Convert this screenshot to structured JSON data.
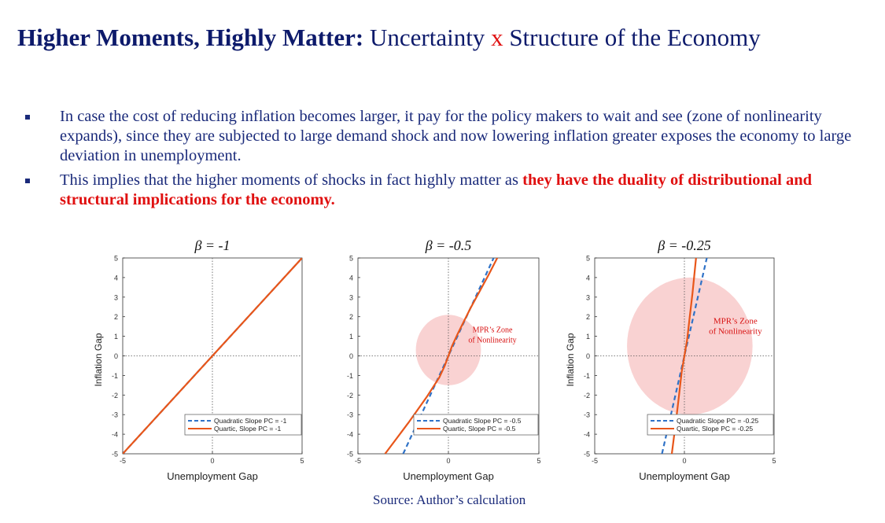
{
  "title": {
    "bold": "Higher Moments, Highly Matter:",
    "part1": "Uncertainty",
    "x": "x",
    "part2": "Structure of the Economy"
  },
  "bullets": [
    {
      "text": "In case the cost of reducing inflation becomes larger, it pay for the policy makers to wait and see (zone of nonlinearity expands), since they are subjected to large demand shock and now lowering inflation greater exposes the economy to large deviation in unemployment."
    },
    {
      "text": "This implies that the higher moments of shocks in fact highly matter as ",
      "highlight": "they have the duality of distributional and structural implications for the economy."
    }
  ],
  "chart_data": [
    {
      "type": "line",
      "title": "β = -1",
      "xlabel": "Unemployment Gap",
      "ylabel": "Inflation Gap",
      "xlim": [
        -5,
        5
      ],
      "ylim": [
        -5,
        5
      ],
      "xticks": [
        -5,
        0,
        5
      ],
      "yticks": [
        -5,
        -4,
        -3,
        -2,
        -1,
        0,
        1,
        2,
        3,
        4,
        5
      ],
      "series": [
        {
          "name": "Quadratic Slope PC = -1",
          "style": "dashed",
          "color": "#2f72c7",
          "x": [
            -5,
            5
          ],
          "y": [
            -5,
            5
          ]
        },
        {
          "name": "Quartic, Slope PC = -1",
          "style": "solid",
          "color": "#e8561a",
          "x": [
            -5,
            -2.5,
            0,
            2.5,
            5
          ],
          "y": [
            -5,
            -2.5,
            0,
            2.5,
            5
          ]
        }
      ],
      "legend": "bottom-right"
    },
    {
      "type": "line",
      "title": "β = -0.5",
      "xlabel": "Unemployment Gap",
      "ylabel": "",
      "xlim": [
        -5,
        5
      ],
      "ylim": [
        -5,
        5
      ],
      "xticks": [
        -5,
        0,
        5
      ],
      "yticks": [
        -5,
        -4,
        -3,
        -2,
        -1,
        0,
        1,
        2,
        3,
        4,
        5
      ],
      "series": [
        {
          "name": "Quadratic Slope PC = -0.5",
          "style": "dashed",
          "color": "#2f72c7",
          "x": [
            -2.5,
            2.5
          ],
          "y": [
            -5,
            5
          ]
        },
        {
          "name": "Quartic, Slope PC = -0.5",
          "style": "solid",
          "color": "#e8561a",
          "x": [
            -3.5,
            -2.2,
            -1.2,
            -0.5,
            -0.2,
            0,
            0.2,
            0.5,
            1.2,
            2.2,
            2.7
          ],
          "y": [
            -5,
            -3.4,
            -2.1,
            -1.1,
            -0.5,
            0,
            0.5,
            1.1,
            2.4,
            4.1,
            5
          ]
        }
      ],
      "annotation": {
        "text": [
          "MPR’s Zone",
          "of Nonlinearity"
        ],
        "center": [
          0,
          0.3
        ],
        "radius": 1.8
      },
      "legend": "bottom-right"
    },
    {
      "type": "line",
      "title": "β = -0.25",
      "xlabel": "Unemployment Gap",
      "ylabel": "Inflation Gap",
      "xlim": [
        -5,
        5
      ],
      "ylim": [
        -5,
        5
      ],
      "xticks": [
        -5,
        0,
        5
      ],
      "yticks": [
        -5,
        -4,
        -3,
        -2,
        -1,
        0,
        1,
        2,
        3,
        4,
        5
      ],
      "series": [
        {
          "name": "Quadratic Slope PC = -0.25",
          "style": "dashed",
          "color": "#2f72c7",
          "x": [
            -1.25,
            1.25
          ],
          "y": [
            -5,
            5
          ]
        },
        {
          "name": "Quartic, Slope PC = -0.25",
          "style": "solid",
          "color": "#e8561a",
          "x": [
            -0.7,
            -0.45,
            -0.3,
            -0.15,
            0,
            0.15,
            0.3,
            0.45,
            0.65
          ],
          "y": [
            -5,
            -3.2,
            -2.0,
            -0.8,
            0,
            0.8,
            2.0,
            3.2,
            5
          ]
        }
      ],
      "annotation": {
        "text": [
          "MPR’s Zone",
          "of Nonlinearity"
        ],
        "center": [
          0.3,
          0.5
        ],
        "radius": 3.5
      },
      "legend": "bottom-right"
    }
  ],
  "source": "Source: Author’s calculation"
}
